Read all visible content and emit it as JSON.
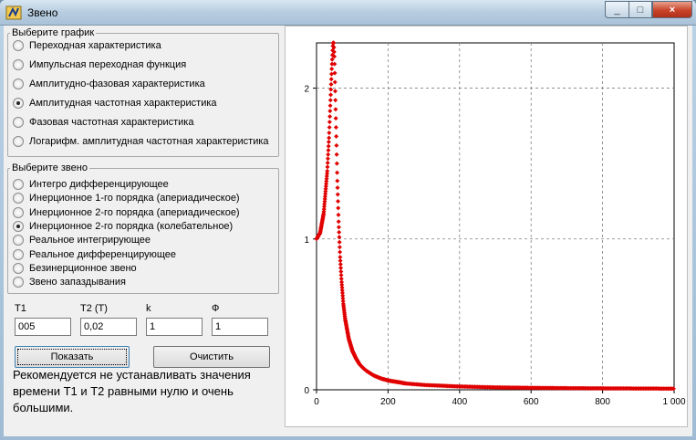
{
  "window": {
    "title": "Звено",
    "close_glyph": "×",
    "minimize_glyph": "_",
    "maximize_glyph": "□"
  },
  "graph_group": {
    "legend": "Выберите график",
    "options": [
      "Переходная характеристика",
      "Импульсная переходная функция",
      "Амплитудно-фазовая характеристика",
      "Амплитудная частотная характеристика",
      "Фазовая частотная характеристика",
      "Логарифм. амплитудная частотная характеристика"
    ],
    "selected_index": 3
  },
  "link_group": {
    "legend": "Выберите звено",
    "options": [
      "Интегро дифференцирующее",
      "Инерционное 1-го порядка (апериадическое)",
      "Инерционное 2-го порядка (апериадическое)",
      "Инерционное 2-го порядка (колебательное)",
      "Реальное интегрирующее",
      "Реальное дифференцирующее",
      "Безинерционное звено",
      "Звено запаздывания"
    ],
    "selected_index": 3
  },
  "params": {
    "t1": {
      "label": "T1",
      "value": "005"
    },
    "t2": {
      "label": "T2 (T)",
      "value": "0,02"
    },
    "k": {
      "label": "k",
      "value": "1"
    },
    "phi": {
      "label": "Ф",
      "value": "1"
    }
  },
  "buttons": {
    "show": "Показать",
    "clear": "Очистить"
  },
  "note": "Рекомендуется не устанавливать значения времени Т1 и Т2 равными нулю и очень большими.",
  "colors": {
    "series": "#e00000",
    "grid": "#808080"
  },
  "chart_data": {
    "type": "scatter",
    "title": "",
    "xlabel": "",
    "ylabel": "",
    "xlim": [
      0,
      1000
    ],
    "ylim": [
      0,
      2.3
    ],
    "x_ticks": [
      "0",
      "200",
      "400",
      "600",
      "800",
      "1 000"
    ],
    "x_tick_values": [
      0,
      200,
      400,
      600,
      800,
      1000
    ],
    "y_ticks": [
      "0",
      "1",
      "2"
    ],
    "y_tick_values": [
      0,
      1,
      2
    ],
    "grid": true,
    "series": [
      {
        "x": [
          0,
          10,
          20,
          30,
          35,
          40,
          43,
          46,
          48,
          50,
          52,
          55,
          58,
          62,
          66,
          70,
          75,
          80,
          90,
          100,
          110,
          120,
          130,
          140,
          160,
          180,
          200,
          250,
          300,
          400,
          500,
          600,
          700,
          800,
          900,
          1000
        ],
        "y": [
          1.0,
          1.04,
          1.17,
          1.45,
          1.68,
          1.98,
          2.15,
          2.3,
          2.3,
          2.2,
          2.0,
          1.7,
          1.4,
          1.1,
          0.88,
          0.72,
          0.57,
          0.47,
          0.34,
          0.26,
          0.21,
          0.17,
          0.145,
          0.125,
          0.095,
          0.075,
          0.062,
          0.042,
          0.032,
          0.022,
          0.016,
          0.013,
          0.011,
          0.0095,
          0.0085,
          0.0075
        ]
      }
    ]
  }
}
